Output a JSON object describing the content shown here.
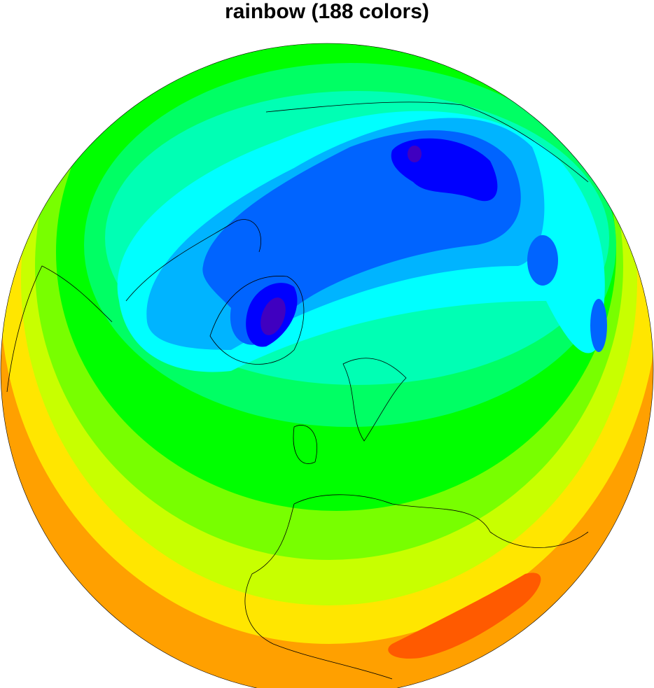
{
  "title": "rainbow (188 colors)",
  "map": {
    "projection": "orthographic",
    "center": "north polar / Europe view",
    "fill_type": "filled contours",
    "outlines": "coastlines",
    "colors": {
      "dark_orange": "#ff5a00",
      "orange": "#ffa000",
      "yellow": "#ffe600",
      "yellow_green": "#c8ff00",
      "light_green": "#78ff00",
      "green": "#00ff00",
      "spring_green": "#00ff64",
      "aquamarine": "#00ffb4",
      "cyan": "#00ffff",
      "sky_blue": "#00b4ff",
      "blue": "#0064ff",
      "deep_blue": "#0000ff",
      "purple": "#4000c0"
    }
  }
}
